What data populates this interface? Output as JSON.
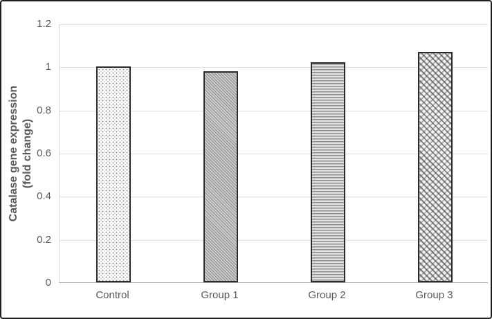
{
  "chart_data": {
    "type": "bar",
    "title": "",
    "categories": [
      "Control",
      "Group 1",
      "Group 2",
      "Group 3"
    ],
    "values": [
      1.0,
      0.98,
      1.02,
      1.07
    ],
    "bar_patterns": [
      "dots",
      "diagonal-hatch",
      "horizontal-lines",
      "trellis"
    ],
    "xlabel": "",
    "ylabel_line1": "Catalase gene expression",
    "ylabel_line2": "(fold change)",
    "ylim": [
      0,
      1.2
    ],
    "yticks": [
      0,
      0.2,
      0.4,
      0.6,
      0.8,
      1,
      1.2
    ],
    "ytick_labels": [
      "0",
      "0.2",
      "0.4",
      "0.6",
      "0.8",
      "1",
      "1.2"
    ],
    "grid": "horizontal",
    "legend": "none",
    "colors": {
      "gridline": "#e0e0e0",
      "x_axis_line": "#a6a6a6",
      "y_axis_line": "#d9d9d9",
      "tick_text": "#595959",
      "bar_outline": "#2b2b2b",
      "figure_border": "#1f1f1f",
      "background": "#ffffff"
    }
  }
}
